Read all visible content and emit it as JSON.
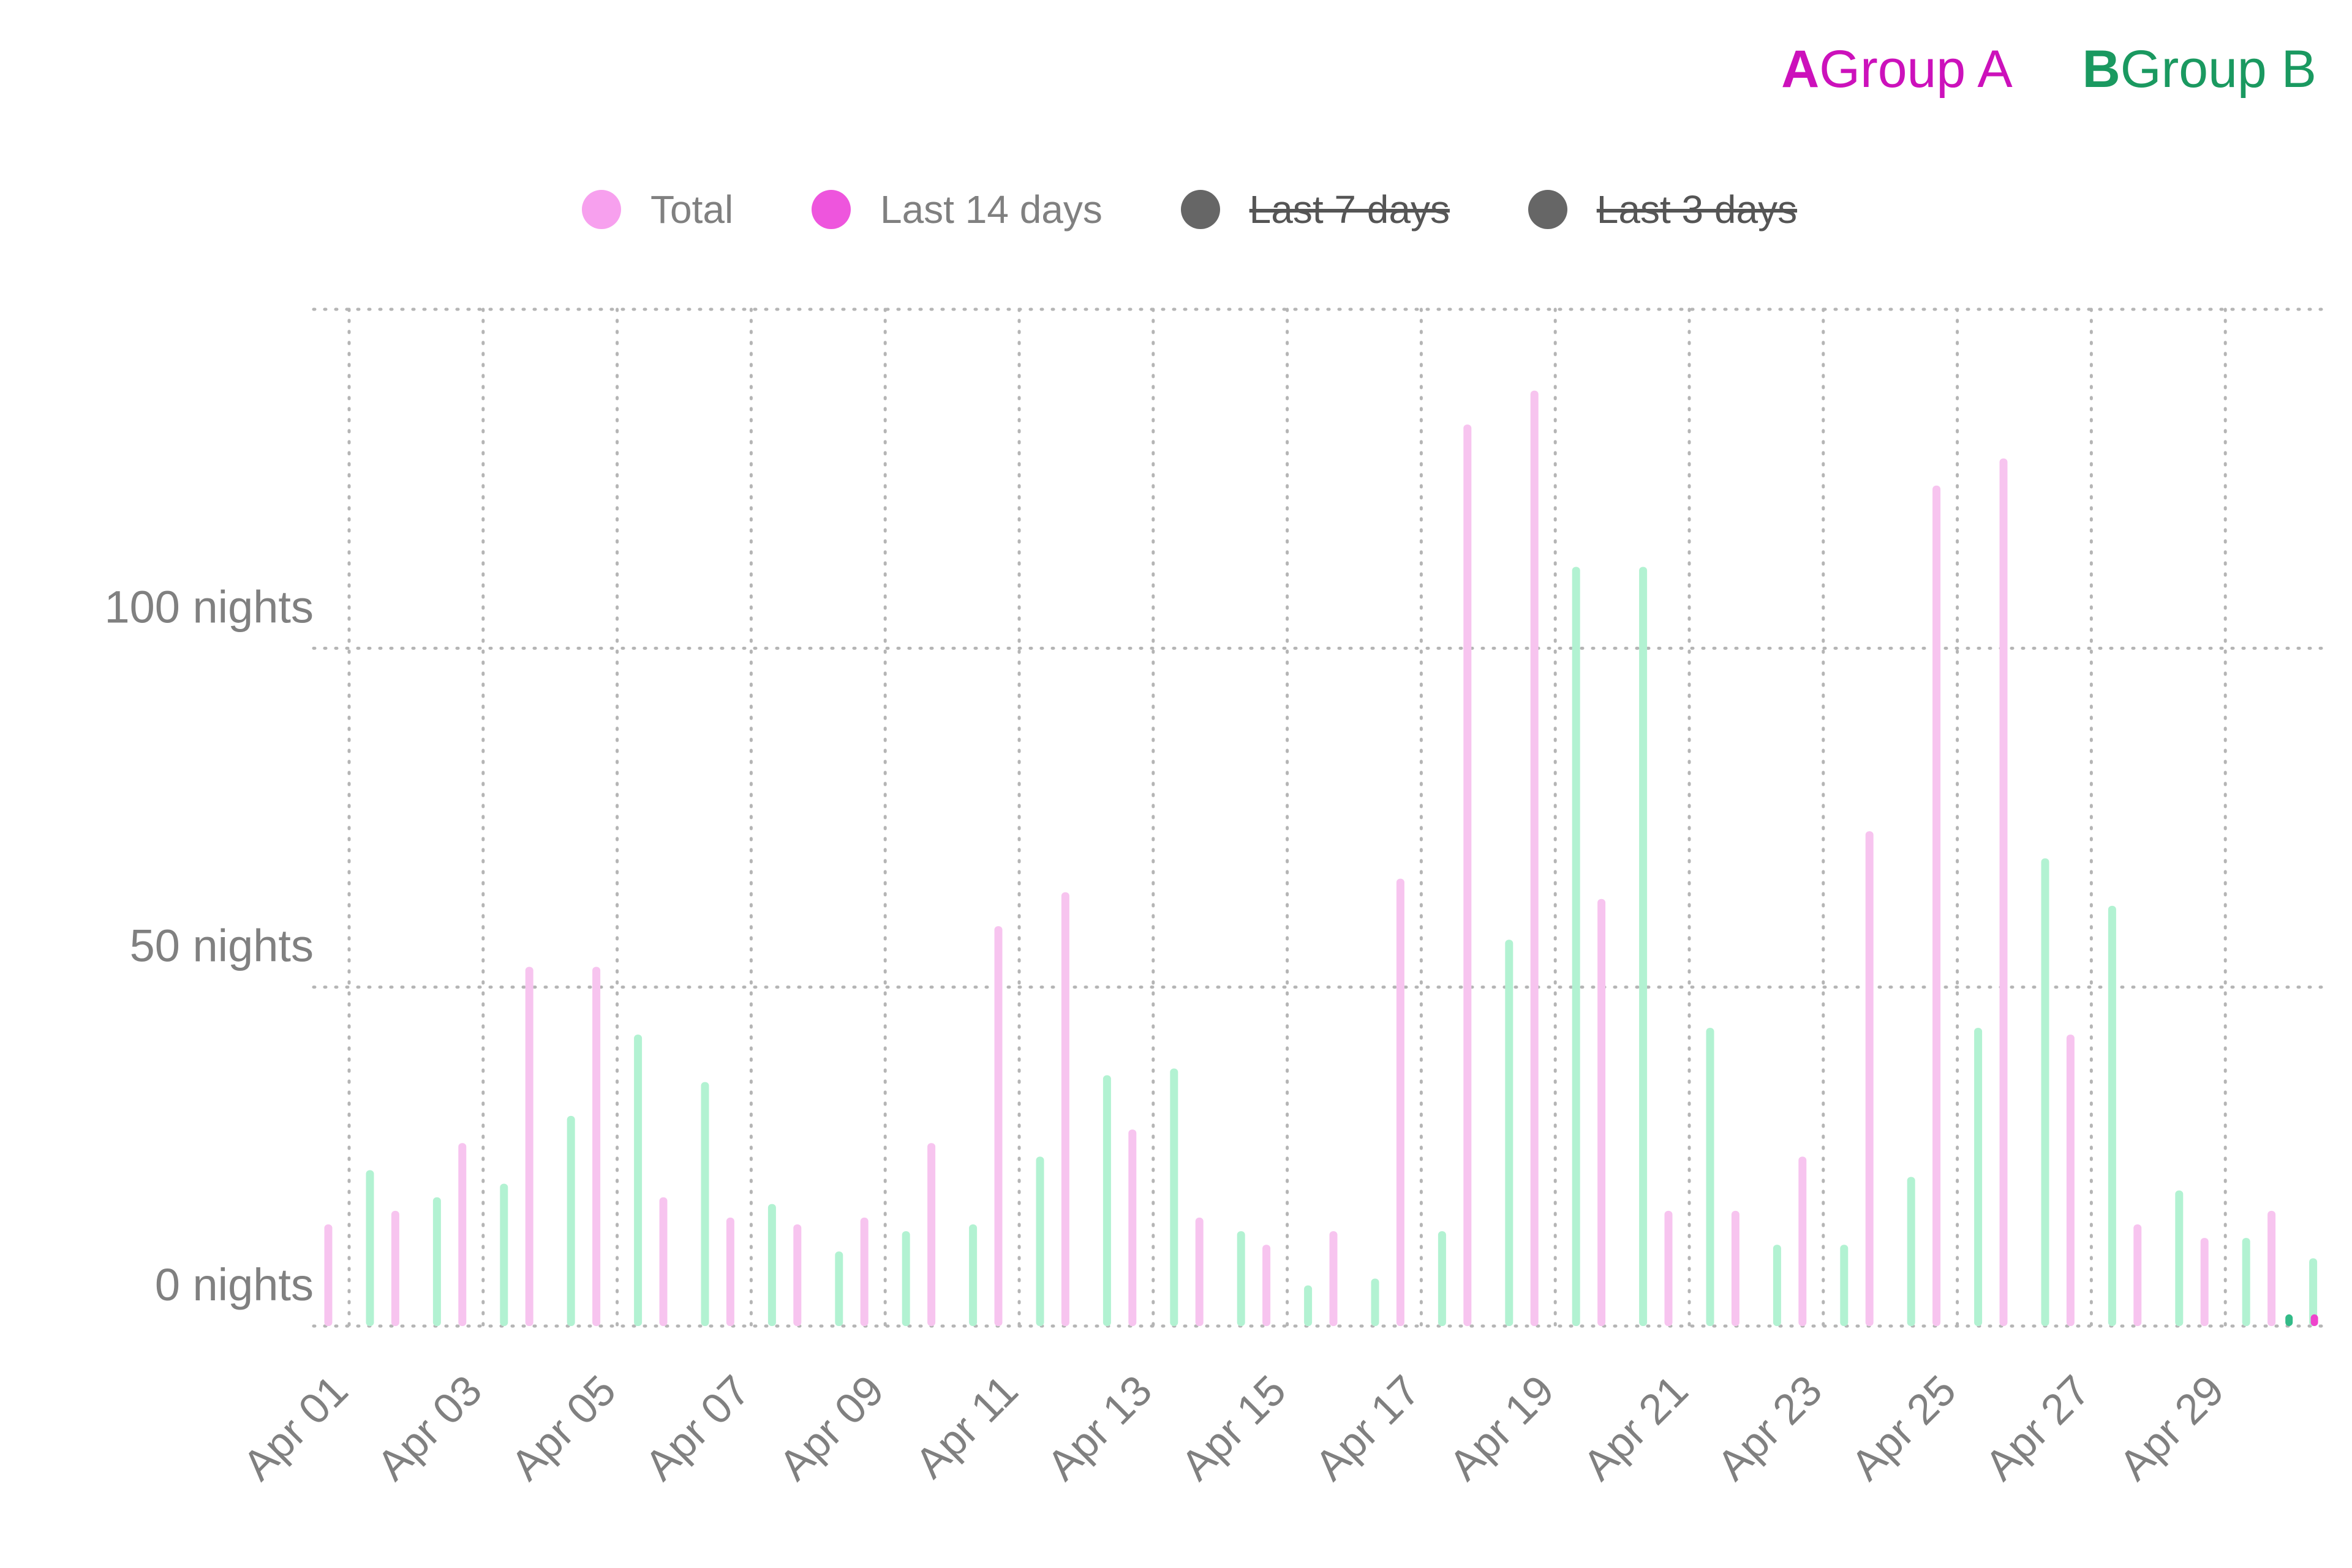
{
  "top_legend": {
    "group_a": {
      "letter": "A",
      "label": "Group A",
      "color": "#cc11bb"
    },
    "group_b": {
      "letter": "B",
      "label": "Group B",
      "color": "#1a9960"
    }
  },
  "legend": [
    {
      "label": "Total",
      "color": "#f7a0ee",
      "enabled": true
    },
    {
      "label": "Last 14 days",
      "color": "#ee55dd",
      "enabled": true
    },
    {
      "label": "Last 7 days",
      "color": "#666666",
      "enabled": false
    },
    {
      "label": "Last 3 days",
      "color": "#666666",
      "enabled": false
    }
  ],
  "chart_data": {
    "type": "bar",
    "x": [
      "Apr 01",
      "Apr 02",
      "Apr 03",
      "Apr 04",
      "Apr 05",
      "Apr 06",
      "Apr 07",
      "Apr 08",
      "Apr 09",
      "Apr 10",
      "Apr 11",
      "Apr 12",
      "Apr 13",
      "Apr 14",
      "Apr 15",
      "Apr 16",
      "Apr 17",
      "Apr 18",
      "Apr 19",
      "Apr 20",
      "Apr 21",
      "Apr 22",
      "Apr 23",
      "Apr 24",
      "Apr 25",
      "Apr 26",
      "Apr 27",
      "Apr 28",
      "Apr 29",
      "Apr 30"
    ],
    "tick_labels": [
      "Apr 01",
      "Apr 03",
      "Apr 05",
      "Apr 07",
      "Apr 09",
      "Apr 11",
      "Apr 13",
      "Apr 15",
      "Apr 17",
      "Apr 19",
      "Apr 21",
      "Apr 23",
      "Apr 25",
      "Apr 27",
      "Apr 29"
    ],
    "y_ticks": [
      {
        "value": 0,
        "label": "0 nights"
      },
      {
        "value": 50,
        "label": "50 nights"
      },
      {
        "value": 100,
        "label": "100 nights"
      }
    ],
    "ylim": [
      0,
      150
    ],
    "grid": true,
    "series": [
      {
        "name": "Group A",
        "group": "A",
        "color": "#f7c4ef",
        "values": [
          15,
          17,
          27,
          53,
          53,
          19,
          16,
          15,
          16,
          27,
          59,
          64,
          29,
          16,
          12,
          14,
          66,
          133,
          138,
          63,
          17,
          17,
          25,
          73,
          124,
          128,
          43,
          15,
          13,
          17
        ]
      },
      {
        "name": "Group B",
        "group": "B",
        "color": "#b2f2d2",
        "values": [
          23,
          19,
          21,
          31,
          43,
          36,
          18,
          11,
          14,
          15,
          25,
          37,
          38,
          14,
          6,
          7,
          14,
          57,
          112,
          112,
          44,
          12,
          12,
          22,
          44,
          69,
          62,
          20,
          13,
          10
        ]
      }
    ],
    "last_14_days": {
      "color_a": "#ee44cc",
      "color_b": "#33bb88",
      "x": [
        "Apr 30",
        "Apr 31"
      ],
      "values_a": [
        0,
        1
      ],
      "values_b": [
        1,
        1
      ]
    }
  }
}
